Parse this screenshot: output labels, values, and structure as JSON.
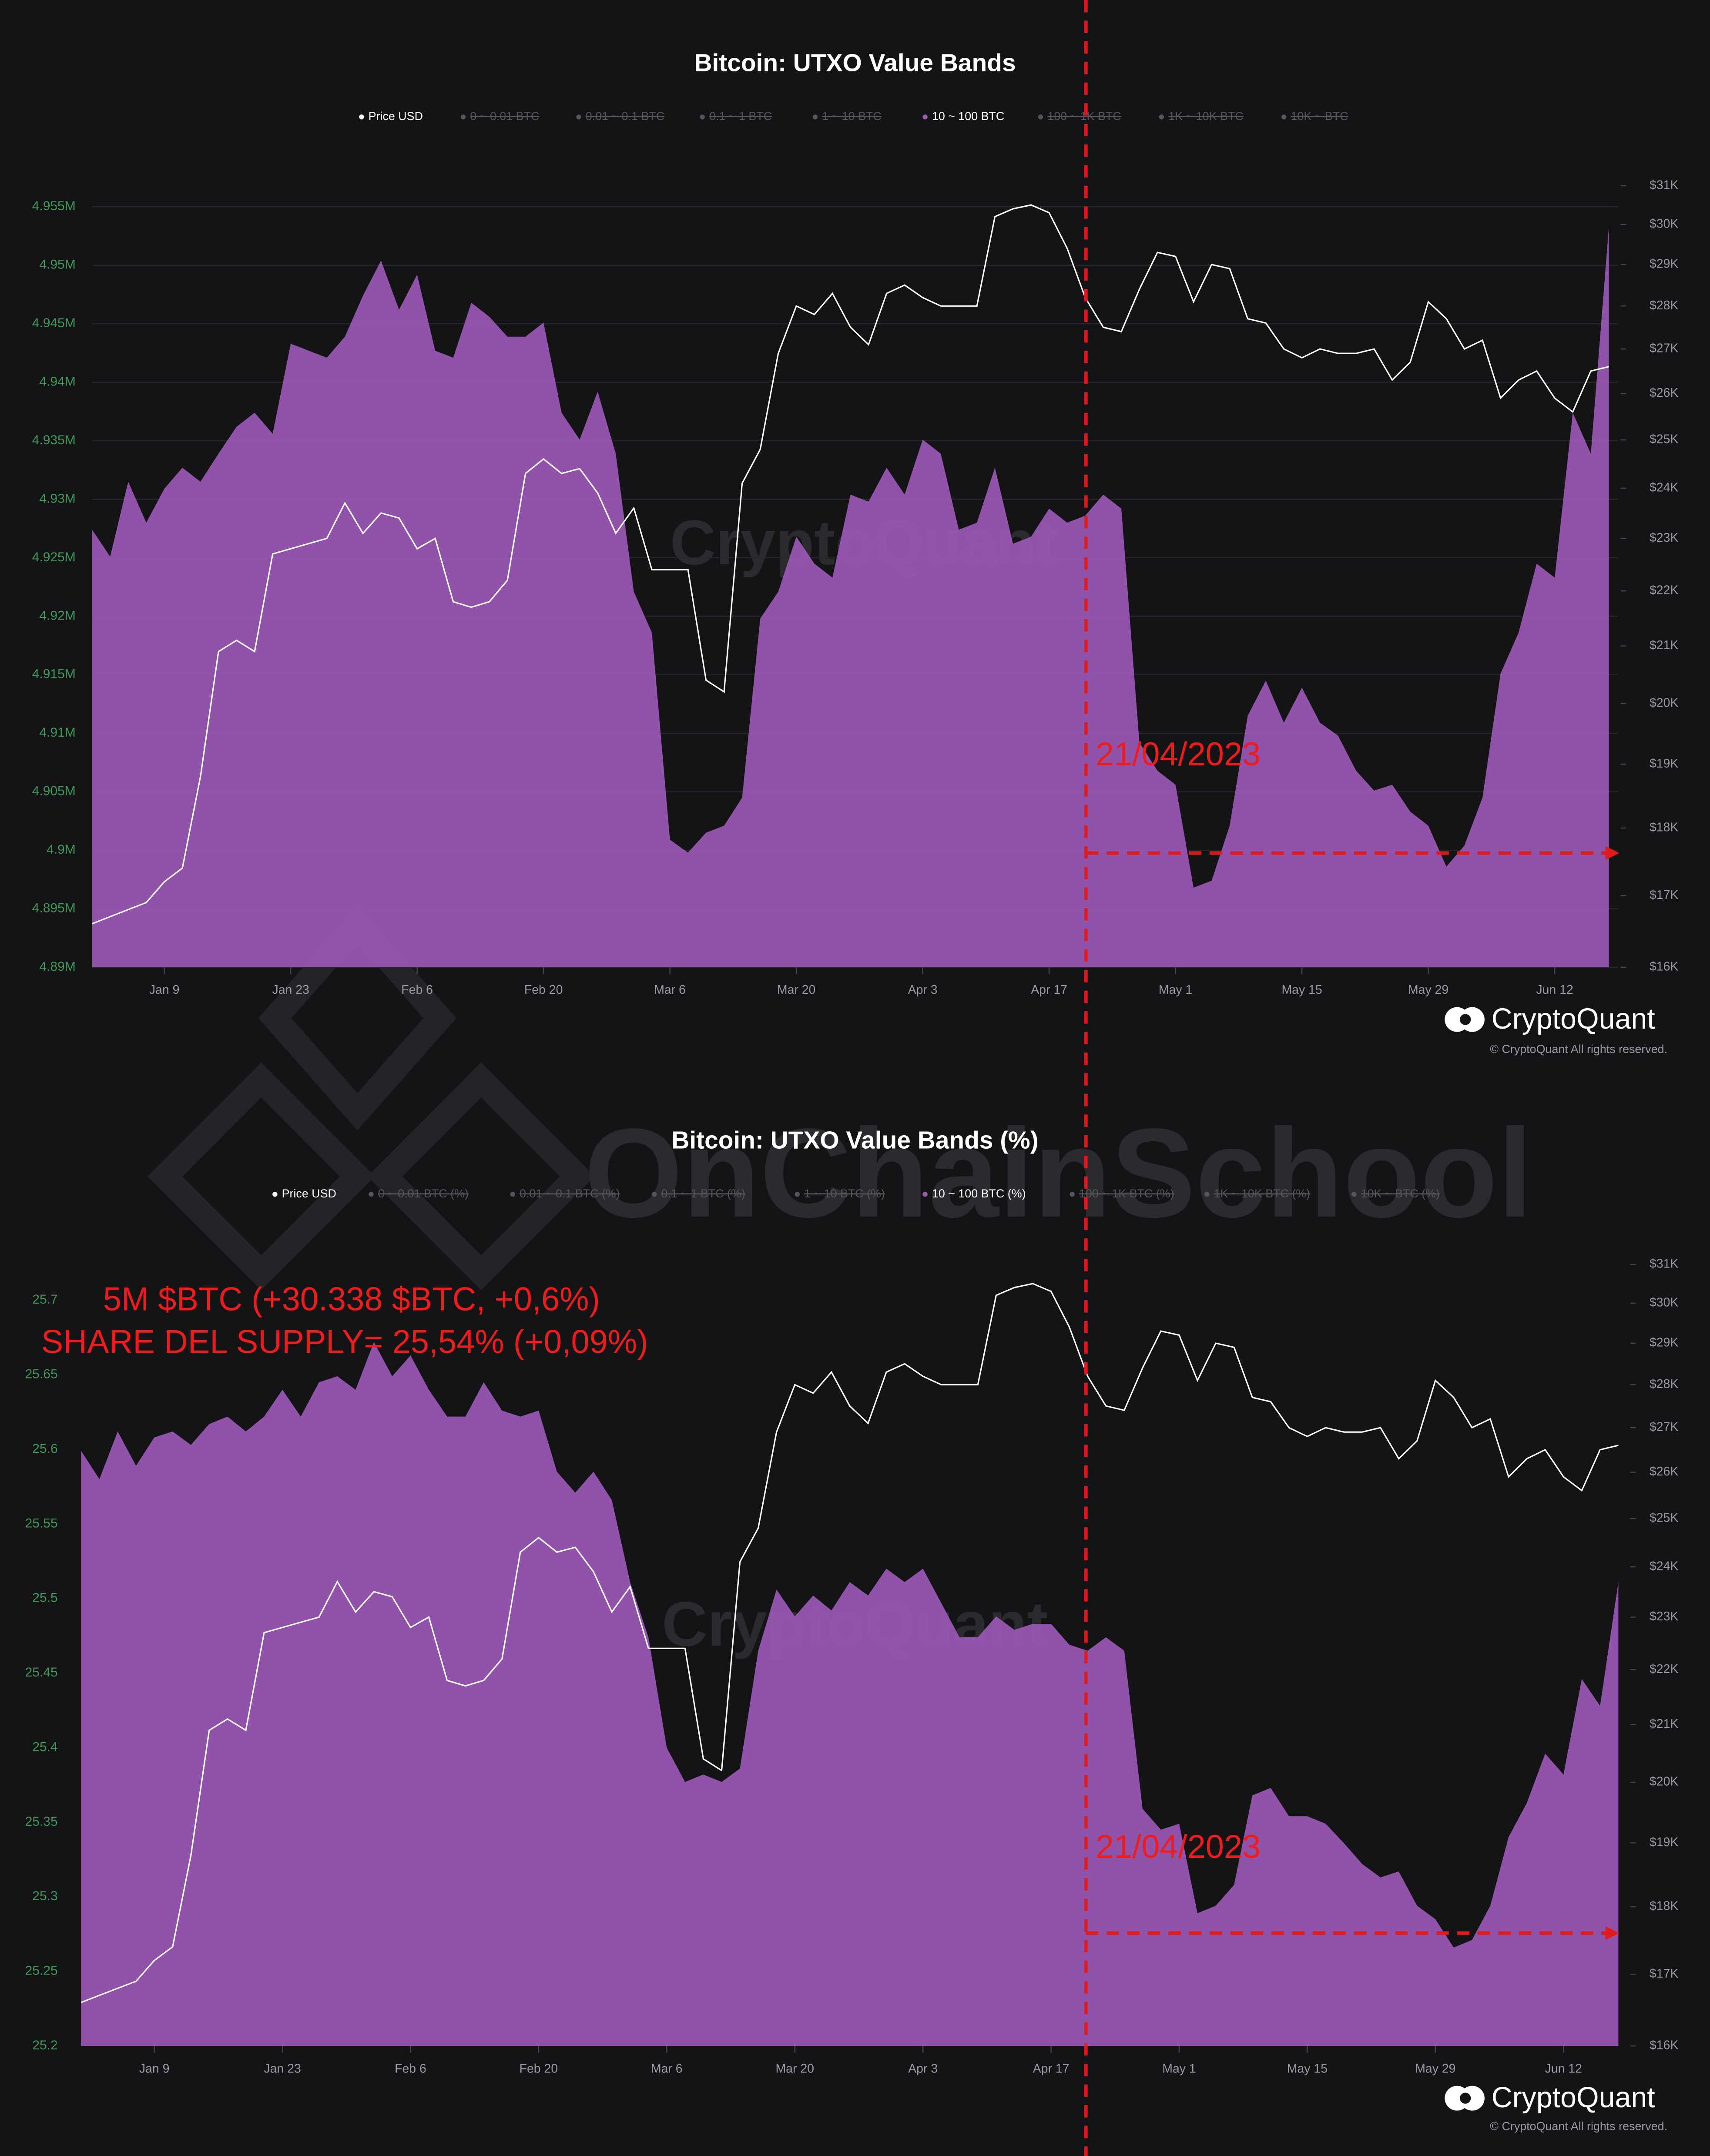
{
  "chart_data": [
    {
      "type": "area",
      "title": "Bitcoin: UTXO Value Bands",
      "x": [
        1,
        3,
        5,
        7,
        9,
        11,
        13,
        15,
        17,
        19,
        21,
        23,
        25,
        27,
        29,
        31,
        33,
        35,
        37,
        39,
        41,
        43,
        45,
        47,
        49,
        51,
        53,
        55,
        57,
        59,
        61,
        63,
        65,
        67,
        69,
        71,
        73,
        75,
        77,
        79,
        81,
        83,
        85,
        87,
        89,
        91,
        93,
        95,
        97,
        99,
        101,
        103,
        105,
        107,
        109,
        111,
        113,
        115,
        117,
        119,
        121,
        123,
        125,
        127,
        129,
        131,
        133,
        135,
        137,
        139,
        141,
        143,
        145,
        147,
        149,
        151,
        153,
        155,
        157,
        159,
        161,
        163,
        165,
        167,
        169
      ],
      "xlim": [
        1,
        170
      ],
      "xticks": [
        {
          "value": 9,
          "label": "Jan 9"
        },
        {
          "value": 23,
          "label": "Jan 23"
        },
        {
          "value": 37,
          "label": "Feb 6"
        },
        {
          "value": 51,
          "label": "Feb 20"
        },
        {
          "value": 65,
          "label": "Mar 6"
        },
        {
          "value": 79,
          "label": "Mar 20"
        },
        {
          "value": 93,
          "label": "Apr 3"
        },
        {
          "value": 107,
          "label": "Apr 17"
        },
        {
          "value": 121,
          "label": "May 1"
        },
        {
          "value": 135,
          "label": "May 15"
        },
        {
          "value": 149,
          "label": "May 29"
        },
        {
          "value": 163,
          "label": "Jun 12"
        }
      ],
      "ylim": [
        4890000,
        4956800
      ],
      "yticks": [
        {
          "value": 4890000,
          "label": "4.89M"
        },
        {
          "value": 4895000,
          "label": "4.895M"
        },
        {
          "value": 4900000,
          "label": "4.9M"
        },
        {
          "value": 4905000,
          "label": "4.905M"
        },
        {
          "value": 4910000,
          "label": "4.91M"
        },
        {
          "value": 4915000,
          "label": "4.915M"
        },
        {
          "value": 4920000,
          "label": "4.92M"
        },
        {
          "value": 4925000,
          "label": "4.925M"
        },
        {
          "value": 4930000,
          "label": "4.93M"
        },
        {
          "value": 4935000,
          "label": "4.935M"
        },
        {
          "value": 4940000,
          "label": "4.94M"
        },
        {
          "value": 4945000,
          "label": "4.945M"
        },
        {
          "value": 4950000,
          "label": "4.95M"
        },
        {
          "value": 4955000,
          "label": "4.955M"
        }
      ],
      "y2lim": [
        16000,
        31000
      ],
      "y2log": true,
      "y2ticks": [
        {
          "value": 16000,
          "label": "$16K"
        },
        {
          "value": 17000,
          "label": "$17K"
        },
        {
          "value": 18000,
          "label": "$18K"
        },
        {
          "value": 19000,
          "label": "$19K"
        },
        {
          "value": 20000,
          "label": "$20K"
        },
        {
          "value": 21000,
          "label": "$21K"
        },
        {
          "value": 22000,
          "label": "$22K"
        },
        {
          "value": 23000,
          "label": "$23K"
        },
        {
          "value": 24000,
          "label": "$24K"
        },
        {
          "value": 25000,
          "label": "$25K"
        },
        {
          "value": 26000,
          "label": "$26K"
        },
        {
          "value": 27000,
          "label": "$27K"
        },
        {
          "value": 28000,
          "label": "$28K"
        },
        {
          "value": 29000,
          "label": "$29K"
        },
        {
          "value": 30000,
          "label": "$30K"
        },
        {
          "value": 31000,
          "label": "$31K"
        }
      ],
      "grid": true,
      "series": [
        {
          "name": "Price USD",
          "type": "line",
          "axis": "y2",
          "color": "#ffffff",
          "values": [
            16600,
            16700,
            16800,
            16900,
            17200,
            17400,
            18800,
            20900,
            21100,
            20900,
            22700,
            22800,
            22900,
            23000,
            23700,
            23100,
            23500,
            23400,
            22800,
            23000,
            21800,
            21700,
            21800,
            22200,
            24300,
            24600,
            24300,
            24400,
            23900,
            23100,
            23600,
            22400,
            22400,
            22400,
            20400,
            20200,
            24100,
            24800,
            26900,
            28000,
            27800,
            28300,
            27500,
            27100,
            28300,
            28500,
            28200,
            28000,
            28000,
            28000,
            30200,
            30400,
            30500,
            30300,
            29400,
            28200,
            27500,
            27400,
            28400,
            29300,
            29200,
            28100,
            29000,
            28900,
            27700,
            27600,
            27000,
            26800,
            27000,
            26900,
            26900,
            27000,
            26300,
            26700,
            28100,
            27700,
            27000,
            27200,
            25900,
            26300,
            26500,
            25900,
            25600,
            26500,
            26600
          ]
        },
        {
          "name": "0 ~ 0.01 BTC",
          "hidden": true
        },
        {
          "name": "0.01 ~ 0.1 BTC",
          "hidden": true
        },
        {
          "name": "0.1 ~ 1 BTC",
          "hidden": true
        },
        {
          "name": "1 ~ 10 BTC",
          "hidden": true
        },
        {
          "name": "10 ~ 100 BTC",
          "type": "area",
          "color": "#9b59b6",
          "values": [
            4927400,
            4925100,
            4931500,
            4928000,
            4930900,
            4932700,
            4931500,
            4933900,
            4936200,
            4937400,
            4935600,
            4943300,
            4942700,
            4942100,
            4943900,
            4947400,
            4950400,
            4946200,
            4949200,
            4942700,
            4942100,
            4946800,
            4945600,
            4943900,
            4943900,
            4945100,
            4937400,
            4935100,
            4939200,
            4933900,
            4922100,
            4918600,
            4900900,
            4899800,
            4901500,
            4902100,
            4904500,
            4919800,
            4922100,
            4926800,
            4924500,
            4923300,
            4930400,
            4929800,
            4932700,
            4930400,
            4935100,
            4933900,
            4927400,
            4928000,
            4932700,
            4926200,
            4926800,
            4929200,
            4928000,
            4928600,
            4930400,
            4929200,
            4909200,
            4906800,
            4905600,
            4896800,
            4897400,
            4902100,
            4911500,
            4914500,
            4910900,
            4913900,
            4910900,
            4909800,
            4906800,
            4905100,
            4905600,
            4903300,
            4902100,
            4898600,
            4900400,
            4904500,
            4915100,
            4918600,
            4924500,
            4923300,
            4937400,
            4933900,
            4953300
          ]
        },
        {
          "name": "100 ~ 1K BTC",
          "hidden": true
        },
        {
          "name": "1K ~ 10K BTC",
          "hidden": true
        },
        {
          "name": "10K ~ BTC",
          "hidden": true
        }
      ]
    },
    {
      "type": "area",
      "title": "Bitcoin: UTXO Value Bands (%)",
      "x": [
        1,
        3,
        5,
        7,
        9,
        11,
        13,
        15,
        17,
        19,
        21,
        23,
        25,
        27,
        29,
        31,
        33,
        35,
        37,
        39,
        41,
        43,
        45,
        47,
        49,
        51,
        53,
        55,
        57,
        59,
        61,
        63,
        65,
        67,
        69,
        71,
        73,
        75,
        77,
        79,
        81,
        83,
        85,
        87,
        89,
        91,
        93,
        95,
        97,
        99,
        101,
        103,
        105,
        107,
        109,
        111,
        113,
        115,
        117,
        119,
        121,
        123,
        125,
        127,
        129,
        131,
        133,
        135,
        137,
        139,
        141,
        143,
        145,
        147,
        149,
        151,
        153,
        155,
        157,
        159,
        161,
        163,
        165,
        167,
        169
      ],
      "xlim": [
        1,
        170
      ],
      "xticks": [
        {
          "value": 9,
          "label": "Jan 9"
        },
        {
          "value": 23,
          "label": "Jan 23"
        },
        {
          "value": 37,
          "label": "Feb 6"
        },
        {
          "value": 51,
          "label": "Feb 20"
        },
        {
          "value": 65,
          "label": "Mar 6"
        },
        {
          "value": 79,
          "label": "Mar 20"
        },
        {
          "value": 93,
          "label": "Apr 3"
        },
        {
          "value": 107,
          "label": "Apr 17"
        },
        {
          "value": 121,
          "label": "May 1"
        },
        {
          "value": 135,
          "label": "May 15"
        },
        {
          "value": 149,
          "label": "May 29"
        },
        {
          "value": 163,
          "label": "Jun 12"
        }
      ],
      "ylim": [
        25.2,
        25.724
      ],
      "yticks": [
        25.2,
        25.25,
        25.3,
        25.35,
        25.4,
        25.45,
        25.5,
        25.55,
        25.6,
        25.65,
        25.7
      ],
      "y2lim": [
        16000,
        31000
      ],
      "y2log": true,
      "y2ticks": [
        {
          "value": 16000,
          "label": "$16K"
        },
        {
          "value": 17000,
          "label": "$17K"
        },
        {
          "value": 18000,
          "label": "$18K"
        },
        {
          "value": 19000,
          "label": "$19K"
        },
        {
          "value": 20000,
          "label": "$20K"
        },
        {
          "value": 21000,
          "label": "$21K"
        },
        {
          "value": 22000,
          "label": "$22K"
        },
        {
          "value": 23000,
          "label": "$23K"
        },
        {
          "value": 24000,
          "label": "$24K"
        },
        {
          "value": 25000,
          "label": "$25K"
        },
        {
          "value": 26000,
          "label": "$26K"
        },
        {
          "value": 27000,
          "label": "$27K"
        },
        {
          "value": 28000,
          "label": "$28K"
        },
        {
          "value": 29000,
          "label": "$29K"
        },
        {
          "value": 30000,
          "label": "$30K"
        },
        {
          "value": 31000,
          "label": "$31K"
        }
      ],
      "grid": false,
      "series": [
        {
          "name": "Price USD",
          "type": "line",
          "axis": "y2",
          "color": "#ffffff",
          "values": [
            16600,
            16700,
            16800,
            16900,
            17200,
            17400,
            18800,
            20900,
            21100,
            20900,
            22700,
            22800,
            22900,
            23000,
            23700,
            23100,
            23500,
            23400,
            22800,
            23000,
            21800,
            21700,
            21800,
            22200,
            24300,
            24600,
            24300,
            24400,
            23900,
            23100,
            23600,
            22400,
            22400,
            22400,
            20400,
            20200,
            24100,
            24800,
            26900,
            28000,
            27800,
            28300,
            27500,
            27100,
            28300,
            28500,
            28200,
            28000,
            28000,
            28000,
            30200,
            30400,
            30500,
            30300,
            29400,
            28200,
            27500,
            27400,
            28400,
            29300,
            29200,
            28100,
            29000,
            28900,
            27700,
            27600,
            27000,
            26800,
            27000,
            26900,
            26900,
            27000,
            26300,
            26700,
            28100,
            27700,
            27000,
            27200,
            25900,
            26300,
            26500,
            25900,
            25600,
            26500,
            26600
          ]
        },
        {
          "name": "0 ~ 0.01 BTC (%)",
          "hidden": true
        },
        {
          "name": "0.01 ~ 0.1 BTC (%)",
          "hidden": true
        },
        {
          "name": "0.1 ~ 1 BTC (%)",
          "hidden": true
        },
        {
          "name": "1 ~ 10 BTC (%)",
          "hidden": true
        },
        {
          "name": "10 ~ 100 BTC (%)",
          "type": "area",
          "color": "#9b59b6",
          "values": [
            25.599,
            25.58,
            25.612,
            25.589,
            25.608,
            25.612,
            25.603,
            25.617,
            25.622,
            25.612,
            25.622,
            25.64,
            25.622,
            25.645,
            25.649,
            25.64,
            25.672,
            25.649,
            25.663,
            25.64,
            25.622,
            25.622,
            25.645,
            25.626,
            25.622,
            25.626,
            25.585,
            25.571,
            25.585,
            25.566,
            25.511,
            25.474,
            25.4,
            25.377,
            25.382,
            25.377,
            25.386,
            25.465,
            25.506,
            25.488,
            25.502,
            25.492,
            25.511,
            25.502,
            25.52,
            25.511,
            25.52,
            25.497,
            25.474,
            25.474,
            25.488,
            25.479,
            25.483,
            25.483,
            25.469,
            25.465,
            25.474,
            25.465,
            25.359,
            25.345,
            25.349,
            25.289,
            25.294,
            25.308,
            25.368,
            25.373,
            25.354,
            25.354,
            25.349,
            25.336,
            25.322,
            25.313,
            25.317,
            25.294,
            25.285,
            25.266,
            25.271,
            25.294,
            25.34,
            25.363,
            25.396,
            25.382,
            25.446,
            25.428,
            25.511
          ]
        },
        {
          "name": "100 ~ 1K BTC (%)",
          "hidden": true
        },
        {
          "name": "1K ~ 10K BTC (%)",
          "hidden": true
        },
        {
          "name": "10K ~ BTC (%)",
          "hidden": true
        }
      ]
    }
  ],
  "annotations": {
    "date_top": "21/04/2023",
    "date_bottom": "21/04/2023",
    "amount": "5M $BTC (+30.338 $BTC, +0,6%)",
    "share": "SHARE DEL SUPPLY= 25,54% (+0,09%)"
  },
  "branding": {
    "logo": "CryptoQuant",
    "copyright": "© CryptoQuant All rights reserved.",
    "watermark_site": "CryptoQuant",
    "watermark_school": "OnChainSchool"
  }
}
